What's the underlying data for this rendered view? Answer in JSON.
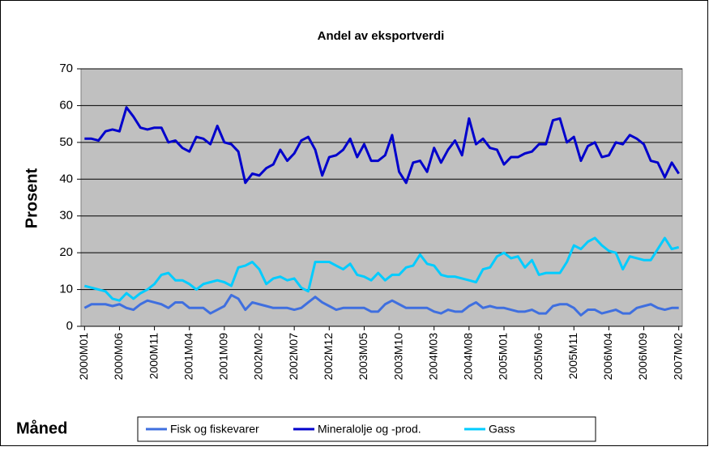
{
  "chart_data": {
    "type": "line",
    "title": "Andel av eksportverdi",
    "y_label": "Prosent",
    "x_label": "Måned",
    "categories": [
      "2000M01",
      null,
      null,
      null,
      null,
      "2000M06",
      null,
      null,
      null,
      null,
      "2000M11",
      null,
      null,
      null,
      null,
      "2001M04",
      null,
      null,
      null,
      null,
      "2001M09",
      null,
      null,
      null,
      null,
      "2002M02",
      null,
      null,
      null,
      null,
      "2002M07",
      null,
      null,
      null,
      null,
      "2002M12",
      null,
      null,
      null,
      null,
      "2003M05",
      null,
      null,
      null,
      null,
      "2003M10",
      null,
      null,
      null,
      null,
      "2004M03",
      null,
      null,
      null,
      null,
      "2004M08",
      null,
      null,
      null,
      null,
      "2005M01",
      null,
      null,
      null,
      null,
      "2005M06",
      null,
      null,
      null,
      null,
      "2005M11",
      null,
      null,
      null,
      null,
      "2006M04",
      null,
      null,
      null,
      null,
      "2006M09",
      null,
      null,
      null,
      null,
      "2007M02"
    ],
    "series": [
      {
        "name": "Fisk og fiskevarer",
        "color": "#3f6fdf",
        "values": [
          5,
          6,
          6,
          6,
          5.5,
          6,
          5,
          4.5,
          6,
          7,
          6.5,
          6,
          5,
          6.5,
          6.5,
          5,
          5,
          5,
          3.5,
          4.5,
          5.5,
          8.5,
          7.5,
          4.5,
          6.5,
          6,
          5.5,
          5,
          5,
          5,
          4.5,
          5,
          6.5,
          8,
          6.5,
          5.5,
          4.5,
          5,
          5,
          5,
          5,
          4,
          4,
          6,
          7,
          6,
          5,
          5,
          5,
          5,
          4,
          3.5,
          4.5,
          4,
          4,
          5.5,
          6.5,
          5,
          5.5,
          5,
          5,
          4.5,
          4,
          4,
          4.5,
          3.5,
          3.5,
          5.5,
          6,
          6,
          5,
          3,
          4.5,
          4.5,
          3.5,
          4,
          4.5,
          3.5,
          3.5,
          5,
          5.5,
          6,
          5,
          4.5,
          5,
          5
        ]
      },
      {
        "name": "Mineralolje og -prod.",
        "color": "#0000cc",
        "values": [
          51,
          51,
          50.5,
          53,
          53.5,
          53,
          59.5,
          57,
          54,
          53.5,
          54,
          54,
          50,
          50.5,
          48.5,
          47.5,
          51.5,
          51,
          49.5,
          54.5,
          50,
          49.5,
          47.5,
          39,
          41.5,
          41,
          43,
          44,
          48,
          45,
          47,
          50.5,
          51.5,
          48,
          41,
          46,
          46.5,
          48,
          51,
          46,
          49.5,
          45,
          45,
          46.5,
          52,
          42,
          39,
          44.5,
          45,
          42,
          48.5,
          44.5,
          48,
          50.5,
          46.5,
          56.5,
          49.5,
          51,
          48.5,
          48,
          44,
          46,
          46,
          47,
          47.5,
          49.5,
          49.5,
          56,
          56.5,
          50,
          51.5,
          45,
          49,
          50,
          46,
          46.5,
          50,
          49.5,
          52,
          51,
          49.5,
          45,
          44.5,
          40.5,
          44.5,
          41.5
        ]
      },
      {
        "name": "Gass",
        "color": "#00ccff",
        "values": [
          11,
          10.5,
          10,
          9.5,
          7.5,
          7,
          9,
          7.5,
          9,
          10,
          11.5,
          14,
          14.5,
          12.5,
          12.5,
          11.5,
          10,
          11.5,
          12,
          12.5,
          12,
          11,
          16,
          16.5,
          17.5,
          15.5,
          11.5,
          13,
          13.5,
          12.5,
          13,
          10.5,
          9.5,
          17.5,
          17.5,
          17.5,
          16.5,
          15.5,
          17,
          14,
          13.5,
          12.5,
          14.5,
          12.5,
          14,
          14,
          16,
          16.5,
          19.5,
          17,
          16.5,
          14,
          13.5,
          13.5,
          13,
          12.5,
          12,
          15.5,
          16,
          19,
          20,
          18.5,
          19,
          16,
          18,
          14,
          14.5,
          14.5,
          14.5,
          17.5,
          22,
          21,
          23,
          24,
          22,
          20.5,
          20,
          15.5,
          19,
          18.5,
          18,
          18,
          21,
          24,
          21,
          21.5
        ]
      }
    ],
    "ylim": [
      0,
      70
    ],
    "yticks": [
      0,
      10,
      20,
      30,
      40,
      50,
      60,
      70
    ],
    "grid": true,
    "legend": "bottom"
  }
}
